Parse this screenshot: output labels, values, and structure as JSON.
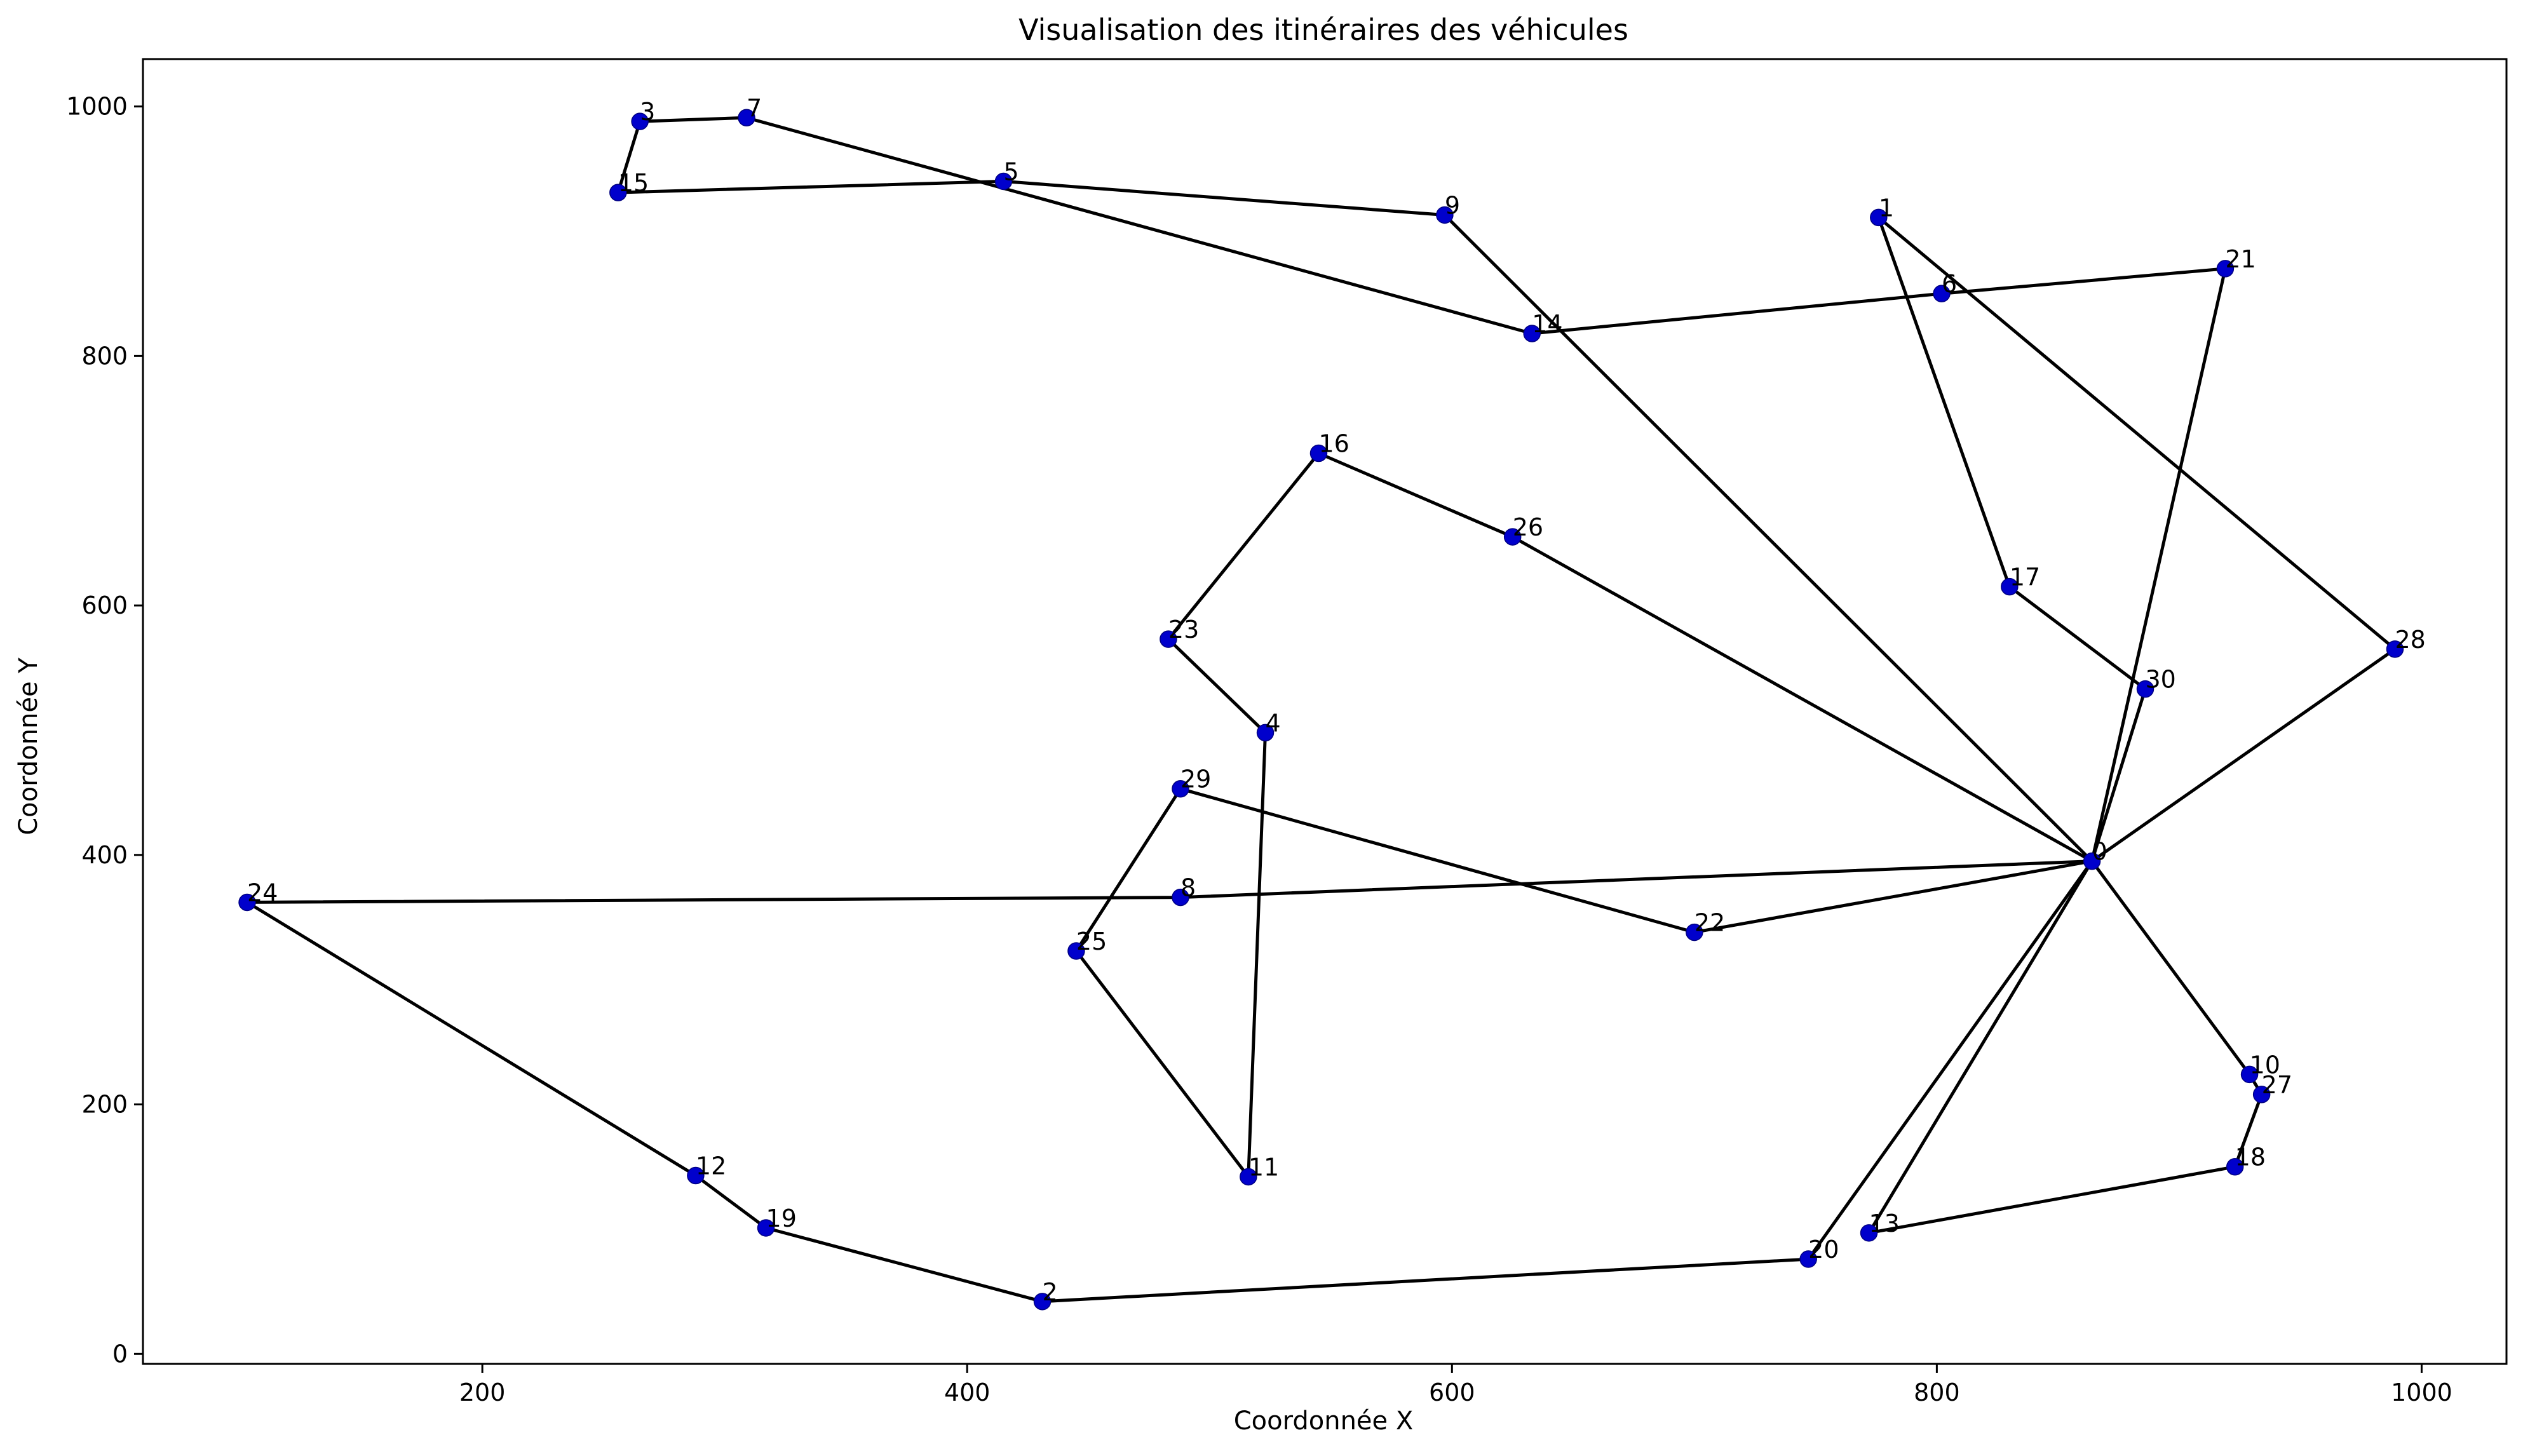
{
  "chart_data": {
    "type": "scatter",
    "title": "Visualisation des itinéraires des véhicules",
    "xlabel": "Coordonnée X",
    "ylabel": "Coordonnée Y",
    "xlim": [
      60,
      1035
    ],
    "ylim": [
      -8,
      1038
    ],
    "xticks": [
      200,
      400,
      600,
      800,
      1000
    ],
    "yticks": [
      0,
      200,
      400,
      600,
      800,
      1000
    ],
    "grid": false,
    "legend": "none",
    "colors": {
      "point": "#0000cc",
      "route": "#000000"
    },
    "points": [
      {
        "label": "0",
        "x": 864,
        "y": 395
      },
      {
        "label": "1",
        "x": 776,
        "y": 911
      },
      {
        "label": "2",
        "x": 431,
        "y": 42
      },
      {
        "label": "3",
        "x": 265,
        "y": 988
      },
      {
        "label": "4",
        "x": 523,
        "y": 498
      },
      {
        "label": "5",
        "x": 415,
        "y": 940
      },
      {
        "label": "6",
        "x": 802,
        "y": 850
      },
      {
        "label": "7",
        "x": 309,
        "y": 991
      },
      {
        "label": "8",
        "x": 488,
        "y": 366
      },
      {
        "label": "9",
        "x": 597,
        "y": 913
      },
      {
        "label": "10",
        "x": 929,
        "y": 224
      },
      {
        "label": "11",
        "x": 516,
        "y": 142
      },
      {
        "label": "12",
        "x": 288,
        "y": 143
      },
      {
        "label": "13",
        "x": 772,
        "y": 97
      },
      {
        "label": "14",
        "x": 633,
        "y": 818
      },
      {
        "label": "15",
        "x": 256,
        "y": 931
      },
      {
        "label": "16",
        "x": 545,
        "y": 722
      },
      {
        "label": "17",
        "x": 830,
        "y": 615
      },
      {
        "label": "18",
        "x": 923,
        "y": 150
      },
      {
        "label": "19",
        "x": 317,
        "y": 101
      },
      {
        "label": "20",
        "x": 747,
        "y": 76
      },
      {
        "label": "21",
        "x": 919,
        "y": 870
      },
      {
        "label": "22",
        "x": 700,
        "y": 338
      },
      {
        "label": "23",
        "x": 483,
        "y": 573
      },
      {
        "label": "24",
        "x": 103,
        "y": 362
      },
      {
        "label": "25",
        "x": 445,
        "y": 323
      },
      {
        "label": "26",
        "x": 625,
        "y": 655
      },
      {
        "label": "27",
        "x": 934,
        "y": 208
      },
      {
        "label": "28",
        "x": 989,
        "y": 565
      },
      {
        "label": "29",
        "x": 488,
        "y": 453
      },
      {
        "label": "30",
        "x": 886,
        "y": 533
      }
    ],
    "routes": [
      [
        "0",
        "9",
        "5",
        "15",
        "3",
        "7",
        "14",
        "6",
        "21",
        "0"
      ],
      [
        "0",
        "30",
        "17",
        "1",
        "28",
        "0"
      ],
      [
        "0",
        "26",
        "16",
        "23",
        "4",
        "11",
        "25",
        "29",
        "22",
        "0"
      ],
      [
        "0",
        "8",
        "24",
        "12",
        "19",
        "2",
        "20",
        "0"
      ],
      [
        "0",
        "10",
        "27",
        "18",
        "13",
        "0"
      ]
    ]
  }
}
